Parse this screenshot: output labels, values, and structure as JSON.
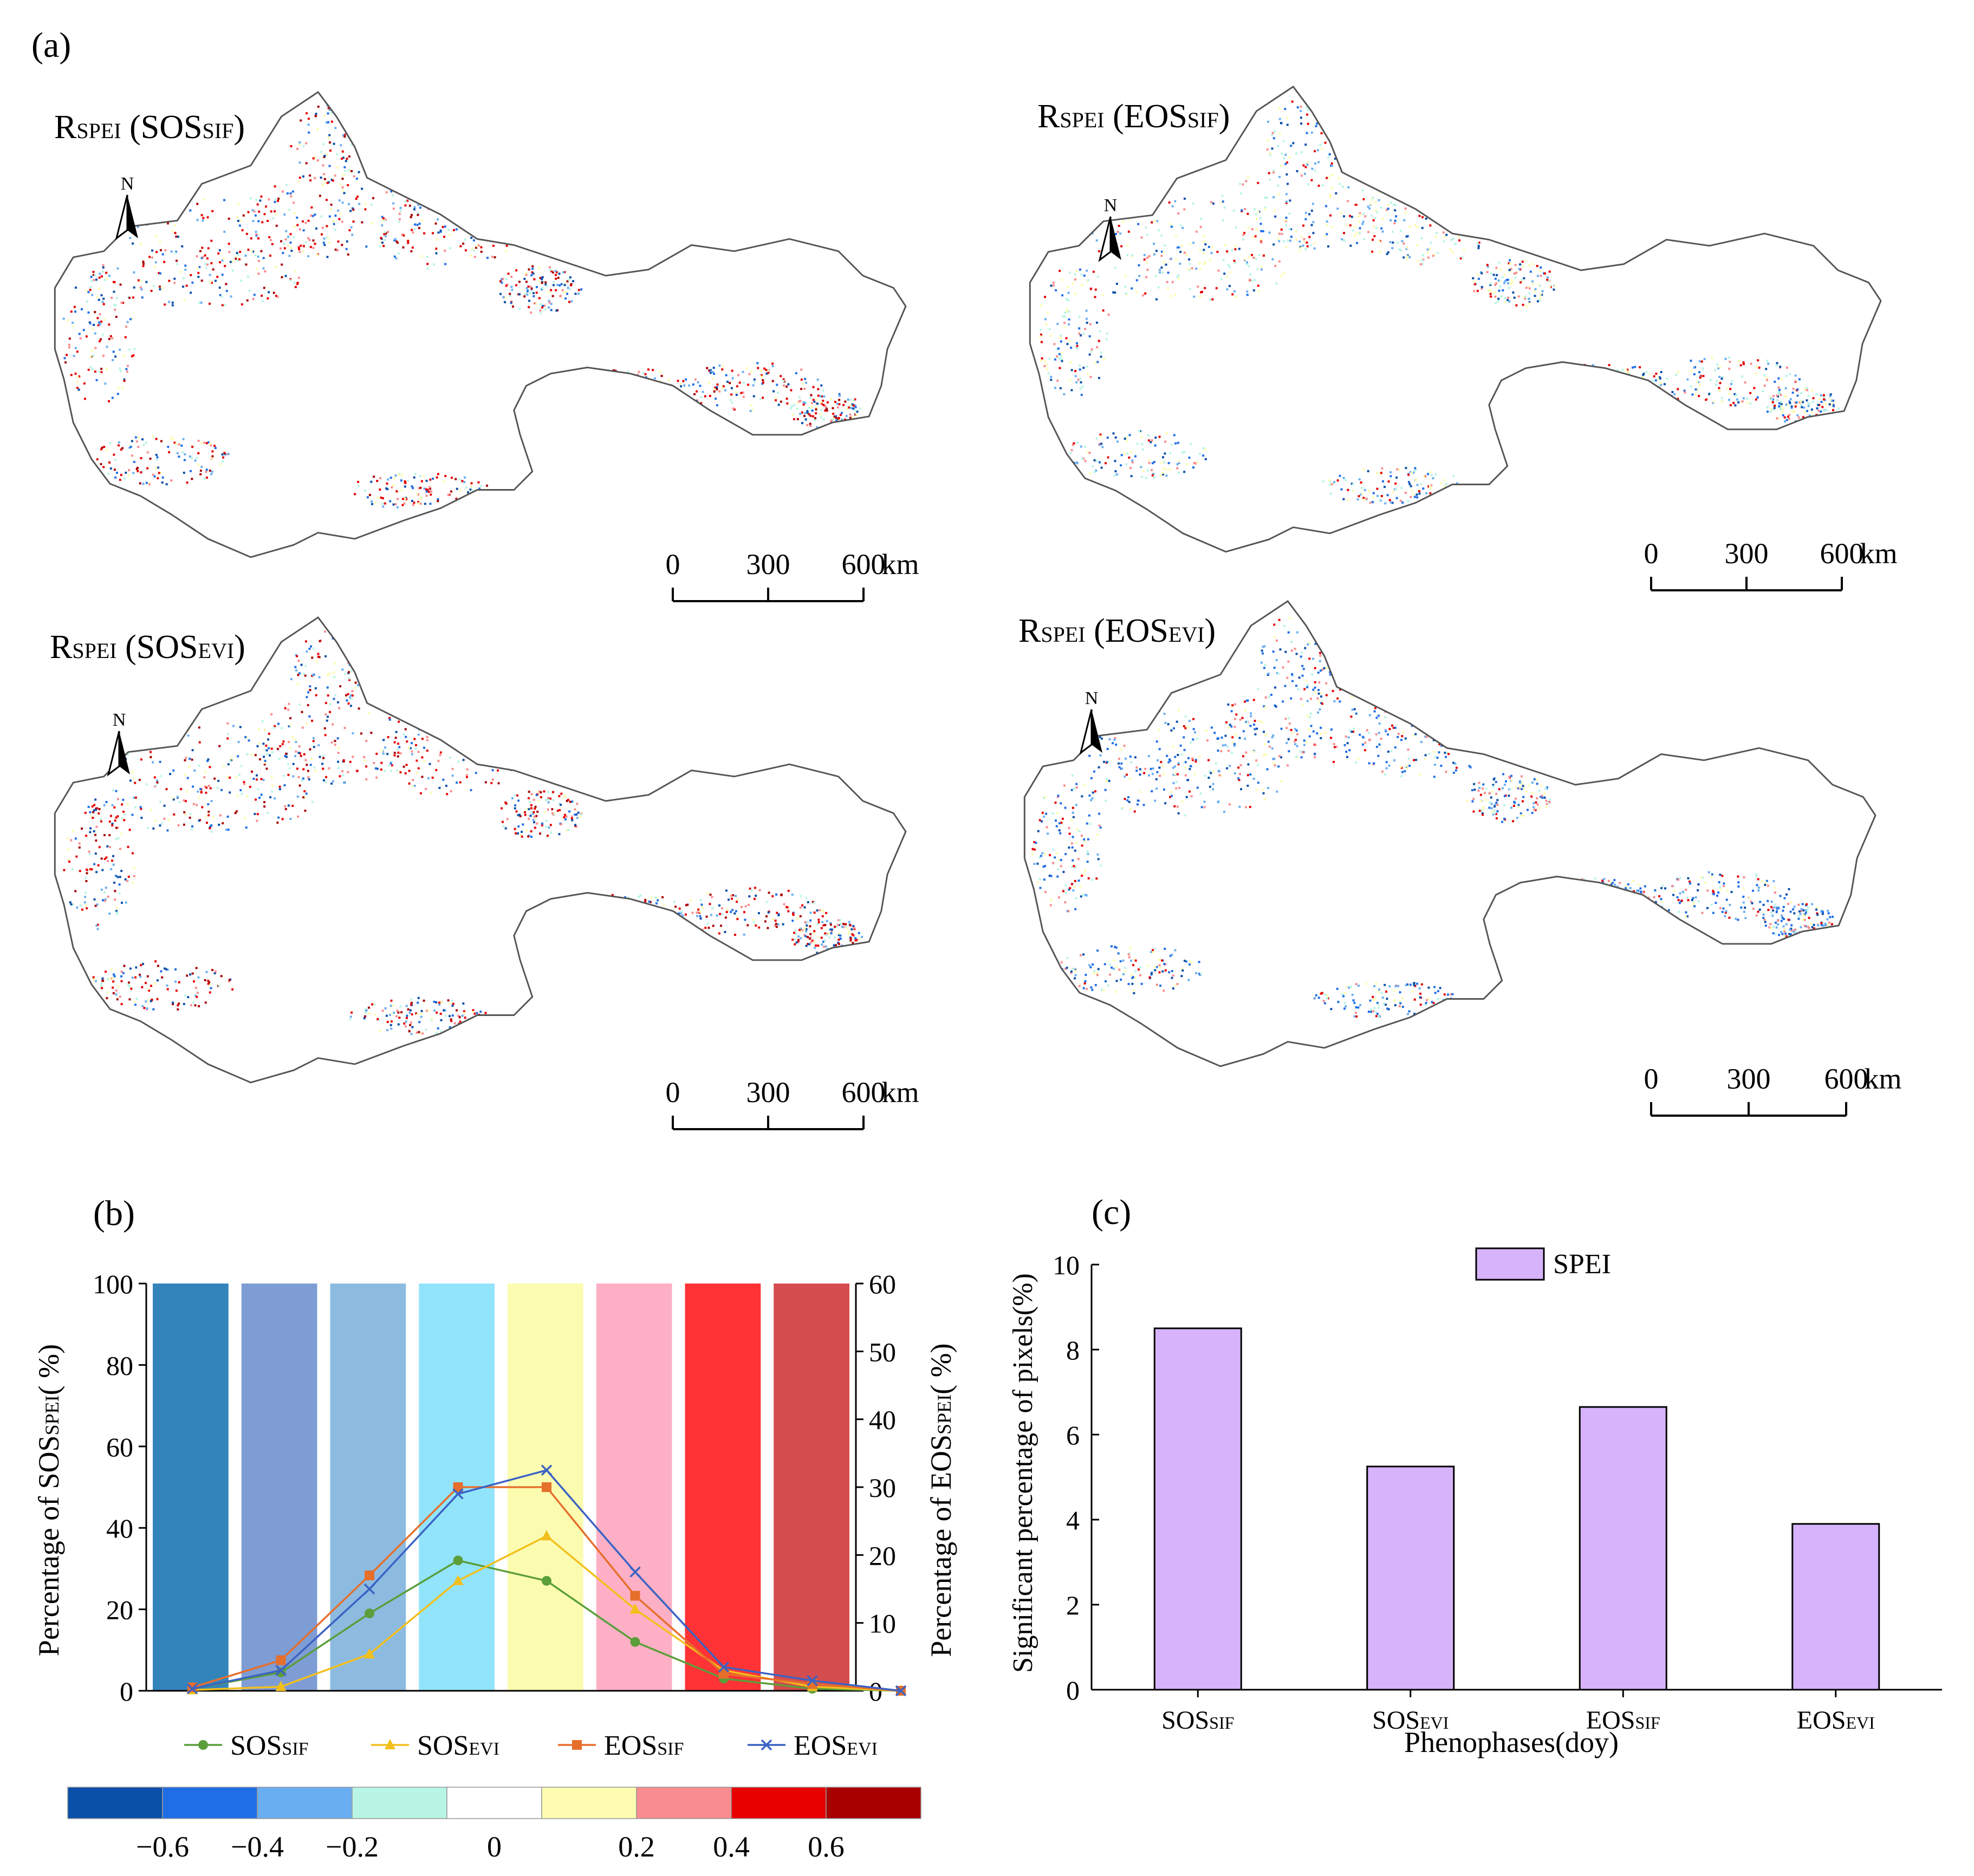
{
  "panel_labels": {
    "a": "(a)",
    "b": "(b)",
    "c": "(c)"
  },
  "maps": [
    {
      "title_base": "R",
      "title_sub": "SPEI",
      "title_paren_open": " (",
      "title_var": "SOS",
      "title_var_sub": "SIF",
      "title_paren_close": ")",
      "dominant": "red"
    },
    {
      "title_base": "R",
      "title_sub": "SPEI",
      "title_paren_open": " (",
      "title_var": "EOS",
      "title_var_sub": "SIF",
      "title_paren_close": ")",
      "dominant": "mixed-yellow-blue"
    },
    {
      "title_base": "R",
      "title_sub": "SPEI",
      "title_paren_open": " (",
      "title_var": "SOS",
      "title_var_sub": "EVI",
      "title_paren_close": ")",
      "dominant": "red"
    },
    {
      "title_base": "R",
      "title_sub": "SPEI",
      "title_paren_open": " (",
      "title_var": "EOS",
      "title_var_sub": "EVI",
      "title_paren_close": ")",
      "dominant": "blue"
    }
  ],
  "north_label": "N",
  "scale_bar": {
    "ticks": [
      "0",
      "300",
      "600"
    ],
    "unit": "km"
  },
  "colorbar": {
    "colors": [
      "#0a4fa8",
      "#1f6ee6",
      "#6aaef2",
      "#b8f5e4",
      "#ffffff",
      "#fdfcb0",
      "#f98c8e",
      "#e60000",
      "#a80000"
    ],
    "labels": [
      "−0.6",
      "−0.4",
      "−0.2",
      "0",
      "0.2",
      "0.4",
      "0.6"
    ]
  },
  "chart_data": [
    {
      "type": "line",
      "panel": "b",
      "background_bins": {
        "values": [
          100,
          100,
          100,
          100,
          100,
          100,
          100,
          100
        ],
        "colors": [
          "#3484bc",
          "#7e9dd4",
          "#8dbbe0",
          "#92e4fb",
          "#fbfcaf",
          "#fdb0c5",
          "#ff3336",
          "#d44c4d"
        ]
      },
      "x": [
        1,
        2,
        3,
        4,
        5,
        6,
        7,
        8,
        9
      ],
      "series": [
        {
          "name": "SOS",
          "name_sub": "SIF",
          "axis": "left",
          "color": "#5b9e3a",
          "marker": "circle",
          "values": [
            0.5,
            4.5,
            19,
            32,
            27,
            12,
            3,
            0.5,
            0
          ]
        },
        {
          "name": "SOS",
          "name_sub": "EVI",
          "axis": "left",
          "color": "#f3bf1c",
          "marker": "triangle",
          "values": [
            0.2,
            1,
            9,
            27,
            38,
            20,
            5,
            1,
            0
          ]
        },
        {
          "name": "EOS",
          "name_sub": "SIF",
          "axis": "right",
          "color": "#e66f2c",
          "marker": "square",
          "values": [
            0.5,
            4.5,
            17,
            30,
            30,
            14,
            2.5,
            1,
            0
          ]
        },
        {
          "name": "EOS",
          "name_sub": "EVI",
          "axis": "right",
          "color": "#3b62c4",
          "marker": "x",
          "values": [
            0.3,
            3,
            15,
            29,
            32.5,
            17.5,
            3.5,
            1.5,
            0
          ]
        }
      ],
      "ylabel_left": "Percentage  of  SOS",
      "ylabel_left_sub": "SPEI",
      "ylabel_left_end": "( %)",
      "ylabel_right": "Percentage  of  EOS",
      "ylabel_right_sub": "SPEI",
      "ylabel_right_end": "( %)",
      "ylim_left": [
        0,
        100
      ],
      "ylim_right": [
        0,
        60
      ],
      "yticks_left": [
        "0",
        "20",
        "40",
        "60",
        "80",
        "100"
      ],
      "yticks_right": [
        "0",
        "10",
        "20",
        "30",
        "40",
        "50",
        "60"
      ]
    },
    {
      "type": "bar",
      "panel": "c",
      "categories": [
        "SOS",
        "SOS",
        "EOS",
        "EOS"
      ],
      "categories_sub": [
        "SIF",
        "EVI",
        "SIF",
        "EVI"
      ],
      "series": [
        {
          "name": "SPEI",
          "color": "#d7b3fc",
          "values": [
            8.5,
            5.25,
            6.65,
            3.9
          ]
        }
      ],
      "xlabel": "Phenophases(doy)",
      "ylabel": "Significant percentage of pixels(%)",
      "ylim": [
        0,
        10
      ],
      "yticks": [
        "0",
        "2",
        "4",
        "6",
        "8",
        "10"
      ],
      "legend": "top-center"
    }
  ]
}
